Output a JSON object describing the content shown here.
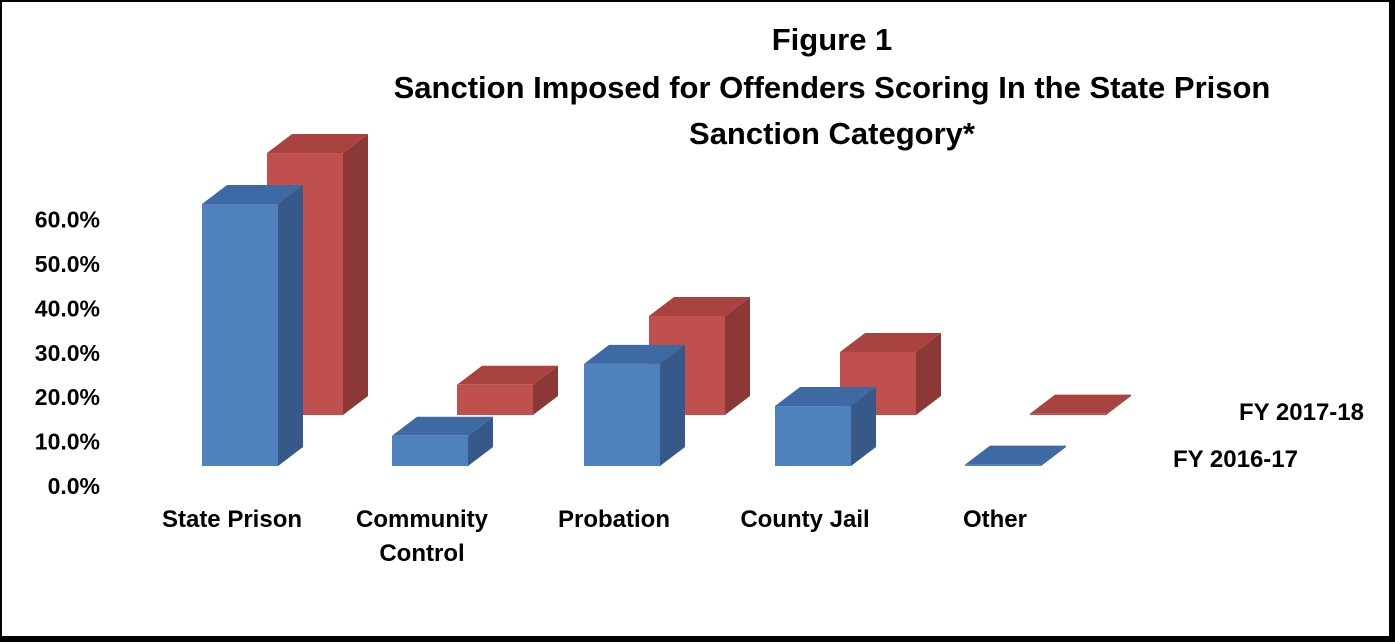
{
  "chart_data": {
    "type": "bar",
    "title_lines": [
      "Figure 1",
      "Sanction Imposed for Offenders Scoring In the State Prison",
      "Sanction Category*"
    ],
    "categories": [
      "State Prison",
      "Community Control",
      "Probation",
      "County Jail",
      "Other"
    ],
    "category_label_lines": [
      [
        "State Prison"
      ],
      [
        "Community",
        "Control"
      ],
      [
        "Probation"
      ],
      [
        "County Jail"
      ],
      [
        "Other"
      ]
    ],
    "series": [
      {
        "name": "FY 2016-17",
        "values": [
          59.0,
          6.8,
          23.0,
          13.5,
          0.3
        ],
        "color": "#4F81BD",
        "side_color": "#36598A",
        "top_color": "#3E6AA3"
      },
      {
        "name": "FY 2017-18",
        "values": [
          59.0,
          6.8,
          22.3,
          14.2,
          0.3
        ],
        "color": "#C0504D",
        "side_color": "#8C3836",
        "top_color": "#A8433F"
      }
    ],
    "ylim": [
      0,
      60
    ],
    "ytick_values": [
      0,
      10,
      20,
      30,
      40,
      50,
      60
    ],
    "ytick_labels": [
      "0.0%",
      "10.0%",
      "20.0%",
      "30.0%",
      "40.0%",
      "50.0%",
      "60.0%"
    ],
    "xlabel": "",
    "ylabel": "",
    "grid": false,
    "legend_placement": "series labels at right of depth rows"
  }
}
